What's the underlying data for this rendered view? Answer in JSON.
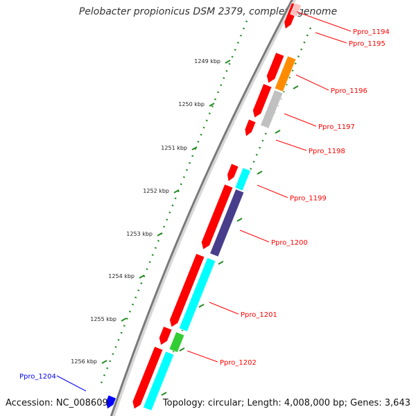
{
  "title": "Pelobacter propionicus DSM 2379, complete genome",
  "accession": "Accession: NC_008609",
  "topology": "Topology: circular; Length: 4,008,000 bp; Genes: 3,643",
  "kbp_labels": [
    "1249 kbp",
    "1250 kbp",
    "1251 kbp",
    "1252 kbp",
    "1253 kbp",
    "1254 kbp",
    "1255 kbp",
    "1256 kbp"
  ],
  "gene_labels": [
    "Ppro_1194",
    "Ppro_1195",
    "Ppro_1196",
    "Ppro_1197",
    "Ppro_1198",
    "Ppro_1199",
    "Ppro_1200",
    "Ppro_1201",
    "Ppro_1202",
    "Ppro_1204"
  ],
  "colors": {
    "gene_red": "#ff0000",
    "cog_orange": "#ff8c00",
    "cog_grey": "#c0c0c0",
    "cog_cyan": "#00ffff",
    "cog_purple": "#483d8b",
    "cog_green": "#32cd32",
    "gene_blue": "#0000ff",
    "pale_pink": "#ffc0c0",
    "label_red": "#ff0000",
    "label_blue": "#0000ff",
    "tick_green": "#228b22",
    "backbone": "#808080"
  }
}
